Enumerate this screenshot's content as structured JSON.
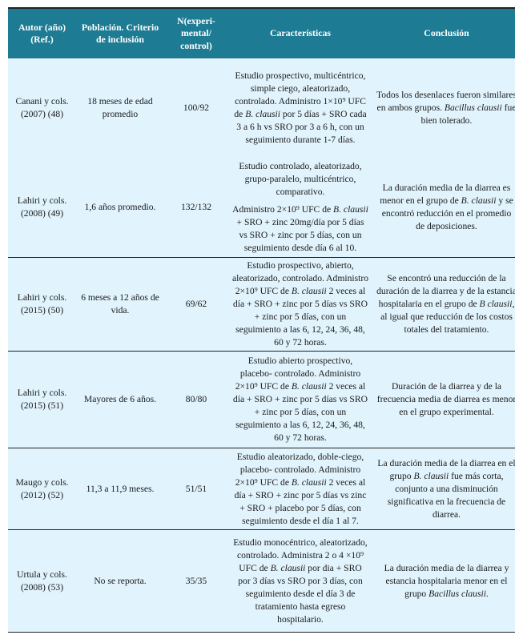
{
  "table": {
    "colors": {
      "header_bg": "#1d7b93",
      "row_bg": "#e1f3fc"
    },
    "headers": [
      "Autor (año) (Ref.)",
      "Población. Criterio de inclusión",
      "N(experi-mental/ control)",
      "Características",
      "Conclusión"
    ],
    "rows": [
      {
        "author": "Canani y cols. (2007) (48)",
        "population": "18 meses de edad promedio",
        "n": "100/92",
        "characteristics": [
          [
            {
              "t": "Estudio prospectivo, multicéntrico, simple ciego, aleatorizado, controlado. Administro 1×10⁹ UFC de "
            },
            {
              "t": "B. clausii",
              "i": true
            },
            {
              "t": " por 5 días + SRO cada 3 a 6 h vs SRO por 3 a 6 h, con un seguimiento durante 1-7 días."
            }
          ]
        ],
        "conclusion": [
          [
            {
              "t": "Todos los desenlaces fueron similares en ambos grupos. "
            },
            {
              "t": "Bacillus clausii",
              "i": true
            },
            {
              "t": " fue bien tolerado."
            }
          ]
        ]
      },
      {
        "author": "Lahiri y cols. (2008) (49)",
        "population": "1,6 años promedio.",
        "n": "132/132",
        "characteristics": [
          [
            {
              "t": "Estudio controlado, aleatorizado, grupo-paralelo, multicéntrico, comparativo."
            }
          ],
          [
            {
              "t": "Administro 2×10⁹ UFC de "
            },
            {
              "t": "B. clausii",
              "i": true
            },
            {
              "t": " + SRO + zinc 20mg/día por 5 días vs SRO + zinc por 5 días, con un seguimiento desde día 6 al 10."
            }
          ]
        ],
        "conclusion": [
          [
            {
              "t": "La duración media de la diarrea es menor en el grupo de "
            },
            {
              "t": "B. clausii",
              "i": true
            },
            {
              "t": " y se encontró reducción en el promedio de deposiciones."
            }
          ]
        ]
      },
      {
        "author": "Lahiri y cols. (2015) (50)",
        "population": "6 meses a 12 años de vida.",
        "n": "69/62",
        "characteristics": [
          [
            {
              "t": "Estudio prospectivo, abierto, aleatorizado, controlado. Administro 2×10⁹ UFC de "
            },
            {
              "t": "B. clausii",
              "i": true
            },
            {
              "t": " 2 veces al día + SRO + zinc por 5 días vs SRO + zinc por 5 días, con un seguimiento a las 6, 12, 24, 36, 48, 60 y 72 horas."
            }
          ]
        ],
        "conclusion": [
          [
            {
              "t": "Se encontró una reducción de la duración de la diarrea y de la estancia hospitalaria en el grupo de "
            },
            {
              "t": "B clausii,",
              "i": true
            },
            {
              "t": " al igual que reducción de los costos totales del tratamiento."
            }
          ]
        ]
      },
      {
        "author": "Lahiri y cols. (2015) (51)",
        "population": "Mayores de 6 años.",
        "n": "80/80",
        "characteristics": [
          [
            {
              "t": "Estudio abierto prospectivo, placebo- controlado. Administro 2×10⁹ UFC de "
            },
            {
              "t": "B. clausii",
              "i": true
            },
            {
              "t": " 2 veces al día + SRO + zinc por 5 días vs SRO + zinc por 5 días, con un seguimiento a las 6, 12, 24, 36, 48, 60 y 72 horas."
            }
          ]
        ],
        "conclusion": [
          [
            {
              "t": "Duración de la diarrea y de la frecuencia media de diarrea es menor en el grupo experimental."
            }
          ]
        ]
      },
      {
        "author": "Maugo y cols. (2012) (52)",
        "population": "11,3 a 11,9 meses.",
        "n": "51/51",
        "characteristics": [
          [
            {
              "t": "Estudio aleatorizado, doble-ciego, placebo- controlado. Administro 2×10⁹ UFC de "
            },
            {
              "t": "B. clausii",
              "i": true
            },
            {
              "t": " 2 veces al día + SRO + zinc por 5 días vs zinc + SRO + placebo por 5 días, con seguimiento desde el día 1 al 7."
            }
          ]
        ],
        "conclusion": [
          [
            {
              "t": "La duración media de la diarrea en el grupo "
            },
            {
              "t": "B. clausii",
              "i": true
            },
            {
              "t": " fue más corta, conjunto a una disminución significativa en la frecuencia de diarrea."
            }
          ]
        ]
      },
      {
        "author": "Urtula y cols. (2008) (53)",
        "population": "No se reporta.",
        "n": "35/35",
        "characteristics": [
          [
            {
              "t": "Estudio monocéntrico, aleatorizado, controlado. Administra 2 o 4 ×10⁹ UFC de "
            },
            {
              "t": "B. clausii",
              "i": true
            },
            {
              "t": " por dia + SRO por 3 días vs SRO por 3 días, con seguimiento desde el día 3 de tratamiento hasta egreso hospitalario."
            }
          ]
        ],
        "conclusion": [
          [
            {
              "t": "La duración media de la diarrea y estancia hospitalaria menor en el grupo "
            },
            {
              "t": "Bacillus clausii",
              "i": true
            },
            {
              "t": "."
            }
          ]
        ]
      }
    ]
  }
}
